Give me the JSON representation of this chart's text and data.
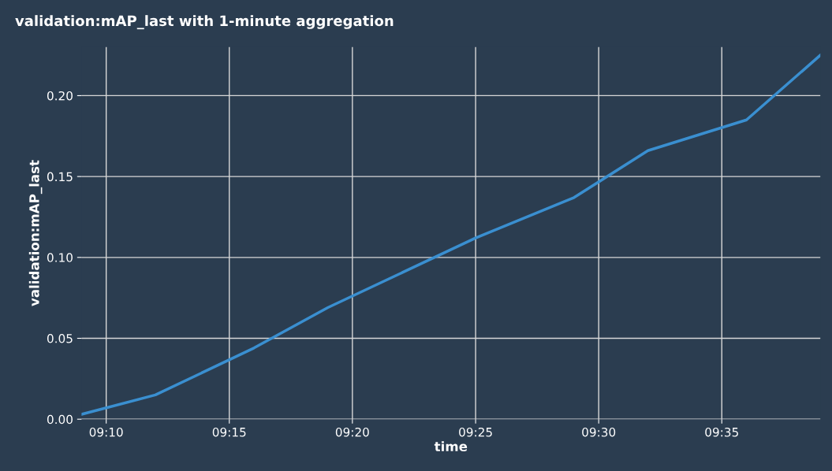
{
  "chart_data": {
    "type": "line",
    "title": "validation:mAP_last with 1-minute aggregation",
    "xlabel": "time",
    "ylabel": "validation:mAP_last",
    "x": [
      9.15,
      9.2,
      9.2667,
      9.3167,
      9.4167,
      9.4833,
      9.5333,
      9.6,
      9.65
    ],
    "series": [
      {
        "color": "#3a8fd0",
        "values": [
          0.003,
          0.015,
          0.044,
          0.069,
          0.112,
          0.137,
          0.166,
          0.185,
          0.225
        ]
      }
    ],
    "xlim": [
      9.15,
      9.65
    ],
    "xticks": [
      {
        "value": 9.1667,
        "label": "09:10"
      },
      {
        "value": 9.25,
        "label": "09:15"
      },
      {
        "value": 9.3333,
        "label": "09:20"
      },
      {
        "value": 9.4167,
        "label": "09:25"
      },
      {
        "value": 9.5,
        "label": "09:30"
      },
      {
        "value": 9.5833,
        "label": "09:35"
      }
    ],
    "ylim": [
      0,
      0.23
    ],
    "yticks": [
      {
        "value": 0,
        "label": "0.00"
      },
      {
        "value": 0.05,
        "label": "0.05"
      },
      {
        "value": 0.1,
        "label": "0.10"
      },
      {
        "value": 0.15,
        "label": "0.15"
      },
      {
        "value": 0.2,
        "label": "0.20"
      }
    ],
    "grid": true,
    "line_style": "solid"
  }
}
